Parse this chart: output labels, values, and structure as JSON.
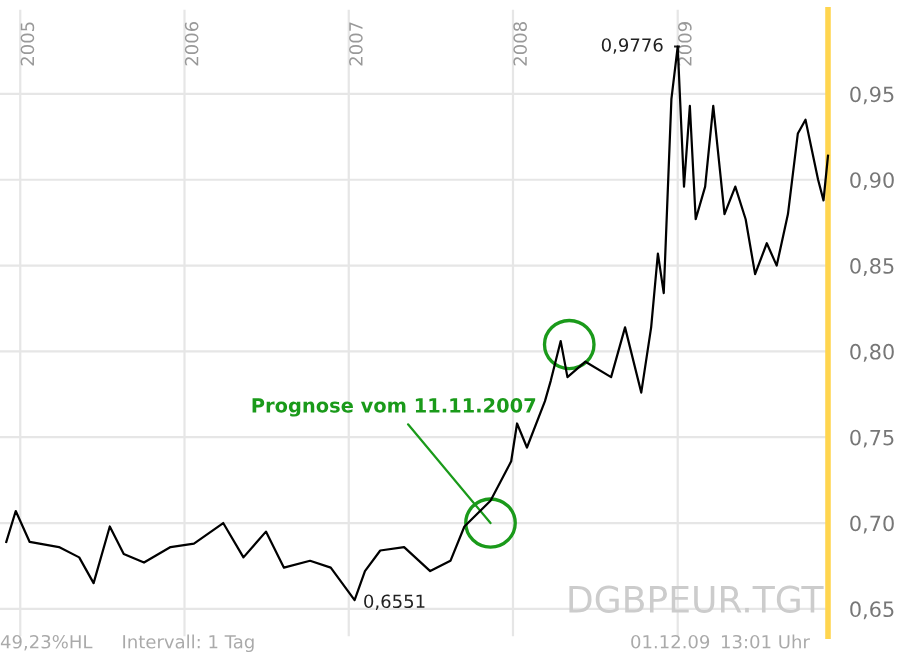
{
  "chart_data": {
    "type": "line",
    "x": [
      "2004-12-01",
      "2004-12-22",
      "2005-01-22",
      "2005-03-28",
      "2005-05-12",
      "2005-06-13",
      "2005-07-19",
      "2005-08-19",
      "2005-10-03",
      "2005-12-01",
      "2006-01-22",
      "2006-03-28",
      "2006-05-12",
      "2006-07-01",
      "2006-08-10",
      "2006-10-07",
      "2006-11-22",
      "2007-01-14",
      "2007-02-06",
      "2007-03-12",
      "2007-05-04",
      "2007-07-01",
      "2007-08-15",
      "2007-09-15",
      "2007-11-12",
      "2007-12-28",
      "2008-01-10",
      "2008-02-01",
      "2008-03-12",
      "2008-03-25",
      "2008-04-16",
      "2008-05-01",
      "2008-06-10",
      "2008-08-06",
      "2008-09-06",
      "2008-10-12",
      "2008-11-03",
      "2008-11-18",
      "2008-12-01",
      "2008-12-18",
      "2009-01-01",
      "2009-01-15",
      "2009-01-28",
      "2009-02-10",
      "2009-03-03",
      "2009-03-21",
      "2009-04-15",
      "2009-05-09",
      "2009-06-01",
      "2009-06-22",
      "2009-07-18",
      "2009-08-09",
      "2009-09-03",
      "2009-09-25",
      "2009-10-12",
      "2009-11-09",
      "2009-11-21",
      "2009-12-01"
    ],
    "series": [
      {
        "color": "#000000",
        "values": [
          0.689,
          0.707,
          0.689,
          0.686,
          0.68,
          0.665,
          0.698,
          0.682,
          0.677,
          0.686,
          0.688,
          0.7,
          0.68,
          0.695,
          0.674,
          0.678,
          0.674,
          0.6551,
          0.672,
          0.684,
          0.686,
          0.672,
          0.678,
          0.698,
          0.713,
          0.736,
          0.758,
          0.744,
          0.771,
          0.783,
          0.806,
          0.785,
          0.794,
          0.785,
          0.814,
          0.776,
          0.814,
          0.857,
          0.834,
          0.947,
          0.9776,
          0.896,
          0.943,
          0.877,
          0.896,
          0.943,
          0.88,
          0.896,
          0.877,
          0.845,
          0.863,
          0.85,
          0.88,
          0.927,
          0.935,
          0.9,
          0.888,
          0.914
        ]
      }
    ],
    "xlim": [
      "2004-11-17",
      "2009-12-01"
    ],
    "xticks": [
      {
        "value": "2005-01-01",
        "label": "2005"
      },
      {
        "value": "2006-01-01",
        "label": "2006"
      },
      {
        "value": "2007-01-01",
        "label": "2007"
      },
      {
        "value": "2008-01-01",
        "label": "2008"
      },
      {
        "value": "2009-01-01",
        "label": "2009"
      }
    ],
    "ylim": [
      0.634,
      0.999
    ],
    "yticks": [
      {
        "value": 0.65,
        "label": "0,65"
      },
      {
        "value": 0.7,
        "label": "0,70"
      },
      {
        "value": 0.75,
        "label": "0,75"
      },
      {
        "value": 0.8,
        "label": "0,80"
      },
      {
        "value": 0.85,
        "label": "0,85"
      },
      {
        "value": 0.9,
        "label": "0,90"
      },
      {
        "value": 0.95,
        "label": "0,95"
      }
    ],
    "grid": true,
    "annotations": [
      {
        "text": "0,9776",
        "x": "2009-01-01",
        "y": 0.9776
      },
      {
        "text": "0,6551",
        "x": "2007-01-14",
        "y": 0.6551
      },
      {
        "text": "Prognose vom 11.11.2007",
        "x": "2007-11-12",
        "y": 0.7
      },
      "DGBPEUR.TGT",
      "49,23%HL",
      "Intervall: 1 Tag",
      "01.12.09",
      "13:01 Uhr"
    ]
  }
}
